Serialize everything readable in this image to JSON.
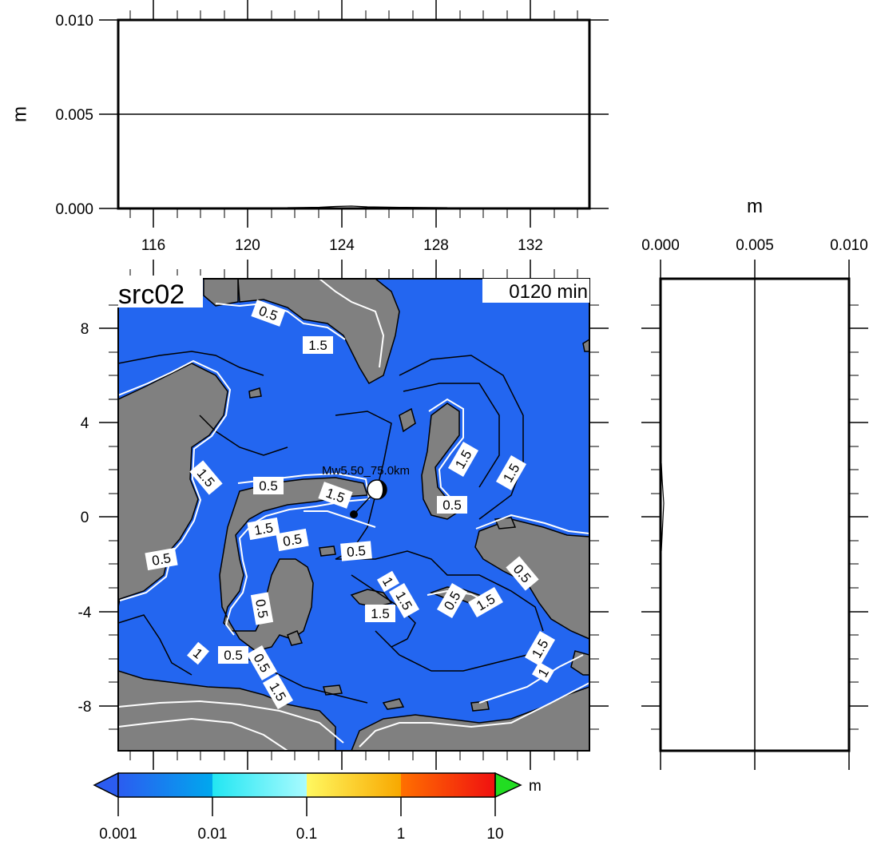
{
  "map": {
    "title": "src02",
    "time_label": "0120 min",
    "event_label": "Mw5.50_75.0km",
    "lon_ticks": [
      "116",
      "120",
      "124",
      "128",
      "132"
    ],
    "lat_ticks": [
      "8",
      "4",
      "0",
      "-4",
      "-8"
    ],
    "contour_labels": [
      {
        "text": "0.5",
        "x": 336,
        "y": 392,
        "rot": 20
      },
      {
        "text": "1.5",
        "x": 398,
        "y": 432,
        "rot": 0
      },
      {
        "text": "1.5",
        "x": 258,
        "y": 598,
        "rot": 50
      },
      {
        "text": "0.5",
        "x": 336,
        "y": 608,
        "rot": 0
      },
      {
        "text": "1.5",
        "x": 420,
        "y": 620,
        "rot": 20
      },
      {
        "text": "1.5",
        "x": 580,
        "y": 575,
        "rot": -60
      },
      {
        "text": "1.5",
        "x": 640,
        "y": 592,
        "rot": -60
      },
      {
        "text": "0.5",
        "x": 566,
        "y": 632,
        "rot": 0
      },
      {
        "text": "1.5",
        "x": 330,
        "y": 662,
        "rot": -10
      },
      {
        "text": "0.5",
        "x": 366,
        "y": 676,
        "rot": -10
      },
      {
        "text": "0.5",
        "x": 202,
        "y": 700,
        "rot": -10
      },
      {
        "text": "0.5",
        "x": 446,
        "y": 690,
        "rot": -5
      },
      {
        "text": "1",
        "x": 486,
        "y": 728,
        "rot": 60
      },
      {
        "text": "1.5",
        "x": 476,
        "y": 768,
        "rot": 0
      },
      {
        "text": "1.5",
        "x": 506,
        "y": 752,
        "rot": 60
      },
      {
        "text": "0.5",
        "x": 566,
        "y": 752,
        "rot": -60
      },
      {
        "text": "1.5",
        "x": 608,
        "y": 754,
        "rot": -30
      },
      {
        "text": "0.5",
        "x": 654,
        "y": 718,
        "rot": 50
      },
      {
        "text": "0.5",
        "x": 328,
        "y": 762,
        "rot": 80
      },
      {
        "text": "1",
        "x": 248,
        "y": 818,
        "rot": 40
      },
      {
        "text": "0.5",
        "x": 292,
        "y": 820,
        "rot": 0
      },
      {
        "text": "0.5",
        "x": 328,
        "y": 830,
        "rot": 60
      },
      {
        "text": "1.5",
        "x": 348,
        "y": 866,
        "rot": 60
      },
      {
        "text": "1.5",
        "x": 676,
        "y": 812,
        "rot": -60
      },
      {
        "text": "1",
        "x": 680,
        "y": 842,
        "rot": -60
      }
    ]
  },
  "top_panel": {
    "unit": "m",
    "y_ticks": [
      "0.010",
      "0.005",
      "0.000"
    ]
  },
  "right_panel": {
    "unit": "m",
    "x_ticks": [
      "0.000",
      "0.005",
      "0.010"
    ]
  },
  "colorbar": {
    "unit": "m",
    "ticks": [
      "0.001",
      "0.01",
      "0.1",
      "1",
      "10"
    ],
    "colors": {
      "ocean": "#2366f0",
      "land": "#808080",
      "over": "#22dd22"
    }
  }
}
